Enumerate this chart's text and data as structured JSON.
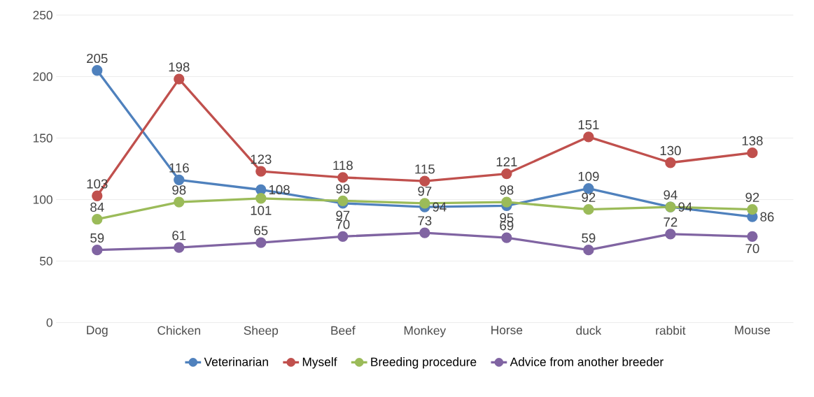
{
  "chart_data": {
    "type": "line",
    "categories": [
      "Dog",
      "Chicken",
      "Sheep",
      "Beef",
      "Monkey",
      "Horse",
      "duck",
      "rabbit",
      "Mouse"
    ],
    "series": [
      {
        "name": "Veterinarian",
        "color": "#4f81bd",
        "values": [
          205,
          116,
          108,
          97,
          94,
          95,
          109,
          94,
          86
        ]
      },
      {
        "name": "Myself",
        "color": "#c0504d",
        "values": [
          103,
          198,
          123,
          118,
          115,
          121,
          151,
          130,
          138
        ]
      },
      {
        "name": "Breeding procedure",
        "color": "#9bbb59",
        "values": [
          84,
          98,
          101,
          99,
          97,
          98,
          92,
          94,
          92
        ]
      },
      {
        "name": "Advice from another breeder",
        "color": "#8064a2",
        "values": [
          59,
          61,
          65,
          70,
          73,
          69,
          59,
          72,
          70
        ]
      }
    ],
    "ylim": [
      0,
      250
    ],
    "yticks": [
      0,
      50,
      100,
      150,
      200,
      250
    ],
    "grid": "y",
    "legend": "bottom",
    "marker": "circle",
    "line_style": "solid",
    "data_labels": true
  }
}
